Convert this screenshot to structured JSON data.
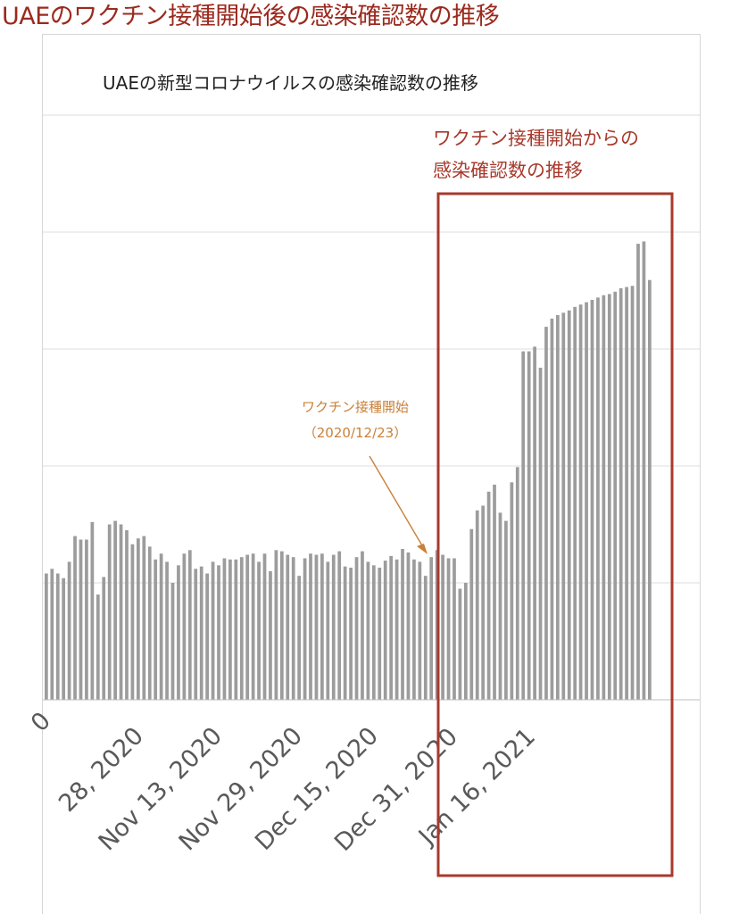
{
  "page_title": "UAEのワクチン接種開始後の感染確認数の推移",
  "colors": {
    "bar": "#9c9c9c",
    "highlight": "#a8392c",
    "annotation": "#c9803a",
    "title": "#9b2a1e",
    "grid": "#dcdcdc"
  },
  "chart_data": {
    "type": "bar",
    "title": "UAEの新型コロナウイルスの感染確認数の推移",
    "xlabel": "",
    "ylabel": "",
    "x_tick_labels": [
      "0",
      "28, 2020",
      "Nov 13, 2020",
      "Nov 29, 2020",
      "Dec 15, 2020",
      "Dec 31, 2020",
      "Jan 16, 2021"
    ],
    "ylim": [
      0,
      5000
    ],
    "grid": true,
    "values": [
      1080,
      1120,
      1080,
      1040,
      1180,
      1400,
      1370,
      1370,
      1520,
      900,
      1050,
      1500,
      1530,
      1500,
      1450,
      1330,
      1380,
      1400,
      1310,
      1200,
      1250,
      1180,
      1000,
      1150,
      1250,
      1280,
      1120,
      1140,
      1080,
      1180,
      1150,
      1210,
      1200,
      1200,
      1220,
      1240,
      1250,
      1180,
      1250,
      1100,
      1280,
      1270,
      1240,
      1220,
      1060,
      1210,
      1250,
      1240,
      1250,
      1180,
      1240,
      1270,
      1140,
      1130,
      1220,
      1270,
      1180,
      1150,
      1130,
      1190,
      1230,
      1200,
      1290,
      1260,
      1200,
      1180,
      1060,
      1220,
      1280,
      1240,
      1210,
      1210,
      950,
      1000,
      1460,
      1620,
      1660,
      1780,
      1840,
      1600,
      1530,
      1860,
      1990,
      2980,
      2980,
      3020,
      2840,
      3190,
      3260,
      3290,
      3310,
      3330,
      3360,
      3380,
      3400,
      3420,
      3440,
      3460,
      3470,
      3490,
      3520,
      3530,
      3540,
      3900,
      3920,
      3590
    ]
  },
  "annotations": {
    "vaccine_label": "ワクチン接種開始",
    "vaccine_date": "（2020/12/23）",
    "highlight_line1": "ワクチン接種開始からの",
    "highlight_line2": "感染確認数の推移"
  }
}
